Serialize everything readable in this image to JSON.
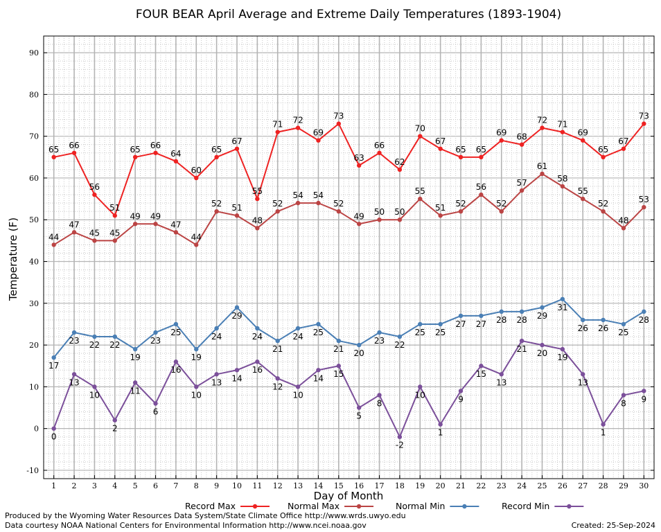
{
  "chart_data": {
    "type": "line",
    "title": "FOUR BEAR April Average and Extreme Daily Temperatures (1893-1904)",
    "xlabel": "Day of Month",
    "ylabel": "Temperature (F)",
    "ylim": [
      -12,
      94
    ],
    "yticks": [
      -10,
      0,
      10,
      20,
      30,
      40,
      50,
      60,
      70,
      80,
      90
    ],
    "x": [
      1,
      2,
      3,
      4,
      5,
      6,
      7,
      8,
      9,
      10,
      11,
      12,
      13,
      14,
      15,
      16,
      17,
      18,
      19,
      20,
      21,
      22,
      23,
      24,
      25,
      26,
      27,
      28,
      29,
      30
    ],
    "grid": true,
    "legend_position": "bottom",
    "series": [
      {
        "name": "Record Max",
        "color": "#ee2222",
        "label_pos": "above",
        "values": [
          65,
          66,
          56,
          51,
          65,
          66,
          64,
          60,
          65,
          67,
          55,
          71,
          72,
          69,
          73,
          63,
          66,
          62,
          70,
          67,
          65,
          65,
          69,
          68,
          72,
          71,
          69,
          65,
          67,
          73
        ]
      },
      {
        "name": "Normal Max",
        "color": "#bb4444",
        "label_pos": "above",
        "values": [
          44,
          47,
          45,
          45,
          49,
          49,
          47,
          44,
          52,
          51,
          48,
          52,
          54,
          54,
          52,
          49,
          50,
          50,
          55,
          51,
          52,
          56,
          52,
          57,
          61,
          58,
          55,
          52,
          48,
          53
        ]
      },
      {
        "name": "Normal Min",
        "color": "#4a7fb5",
        "label_pos": "below",
        "values": [
          17,
          23,
          22,
          22,
          19,
          23,
          25,
          19,
          24,
          29,
          24,
          21,
          24,
          25,
          21,
          20,
          23,
          22,
          25,
          25,
          27,
          27,
          28,
          28,
          29,
          31,
          26,
          26,
          25,
          28
        ]
      },
      {
        "name": "Record Min",
        "color": "#7b4f9a",
        "label_pos": "below",
        "values": [
          0,
          13,
          10,
          2,
          11,
          6,
          16,
          10,
          13,
          14,
          16,
          12,
          10,
          14,
          15,
          5,
          8,
          -2,
          10,
          1,
          9,
          15,
          13,
          21,
          20,
          19,
          13,
          1,
          8,
          9
        ]
      }
    ]
  },
  "footer": {
    "produced_by": "Produced by the Wyoming Water Resources Data System/State Climate Office http://www.wrds.uwyo.edu",
    "courtesy": "Data courtesy NOAA National Centers for Environmental Information http://www.ncei.noaa.gov",
    "created": "Created:  25-Sep-2024"
  }
}
